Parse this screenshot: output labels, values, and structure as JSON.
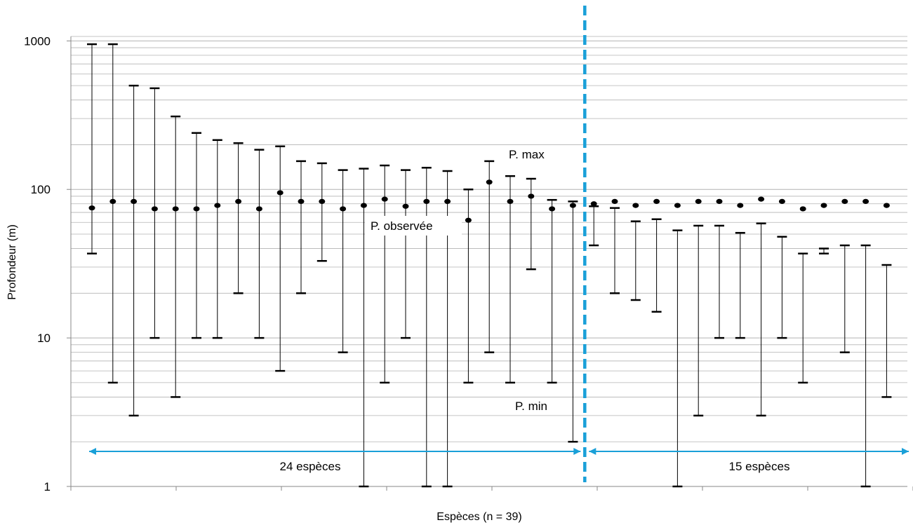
{
  "chart_data": {
    "type": "range-dot",
    "title": "",
    "xlabel": "Espèces (n = 39)",
    "ylabel": "Profondeur (m)",
    "y_scale": "log",
    "ylim": [
      1,
      1000
    ],
    "yticks": [
      "1",
      "10",
      "100",
      "1000"
    ],
    "grid": "horizontal minor (log)",
    "annotations": {
      "max_label": "P.  max",
      "observed_label": "P.  observée",
      "min_label": "P.  min",
      "group_left_label": "24 espèces",
      "group_right_label": "15 espèces"
    },
    "group_split_after_index": 24,
    "colors": {
      "divider": "#1aa0d8",
      "group_arrow": "#1aa0d8",
      "marks": "#000000",
      "grid": "#b3b3b3"
    },
    "species": [
      {
        "min": 37,
        "max": 950,
        "observed": 75
      },
      {
        "min": 5,
        "max": 950,
        "observed": 83
      },
      {
        "min": 3,
        "max": 500,
        "observed": 83
      },
      {
        "min": 10,
        "max": 480,
        "observed": 74
      },
      {
        "min": 4,
        "max": 310,
        "observed": 74
      },
      {
        "min": 10,
        "max": 240,
        "observed": 74
      },
      {
        "min": 10,
        "max": 215,
        "observed": 78
      },
      {
        "min": 20,
        "max": 205,
        "observed": 83
      },
      {
        "min": 10,
        "max": 185,
        "observed": 74
      },
      {
        "min": 6,
        "max": 195,
        "observed": 95
      },
      {
        "min": 20,
        "max": 155,
        "observed": 83
      },
      {
        "min": 33,
        "max": 150,
        "observed": 83
      },
      {
        "min": 8,
        "max": 135,
        "observed": 74
      },
      {
        "min": 1,
        "max": 138,
        "observed": 78
      },
      {
        "min": 5,
        "max": 145,
        "observed": 86
      },
      {
        "min": 10,
        "max": 135,
        "observed": 77
      },
      {
        "min": 1,
        "max": 140,
        "observed": 83
      },
      {
        "min": 1,
        "max": 133,
        "observed": 83
      },
      {
        "min": 5,
        "max": 100,
        "observed": 62
      },
      {
        "min": 8,
        "max": 155,
        "observed": 112
      },
      {
        "min": 5,
        "max": 123,
        "observed": 83
      },
      {
        "min": 29,
        "max": 118,
        "observed": 90
      },
      {
        "min": 5,
        "max": 85,
        "observed": 74
      },
      {
        "min": 2,
        "max": 83,
        "observed": 78
      },
      {
        "min": 42,
        "max": 77,
        "observed": 80
      },
      {
        "min": 20,
        "max": 75,
        "observed": 83
      },
      {
        "min": 18,
        "max": 61,
        "observed": 78
      },
      {
        "min": 15,
        "max": 63,
        "observed": 83
      },
      {
        "min": 1,
        "max": 53,
        "observed": 78
      },
      {
        "min": 3,
        "max": 57,
        "observed": 83
      },
      {
        "min": 10,
        "max": 57,
        "observed": 83
      },
      {
        "min": 10,
        "max": 51,
        "observed": 78
      },
      {
        "min": 3,
        "max": 59,
        "observed": 86
      },
      {
        "min": 10,
        "max": 48,
        "observed": 83
      },
      {
        "min": 5,
        "max": 37,
        "observed": 74
      },
      {
        "min": 37,
        "max": 40,
        "observed": 78
      },
      {
        "min": 8,
        "max": 42,
        "observed": 83
      },
      {
        "min": 1,
        "max": 42,
        "observed": 83
      },
      {
        "min": 4,
        "max": 31,
        "observed": 78
      }
    ]
  }
}
